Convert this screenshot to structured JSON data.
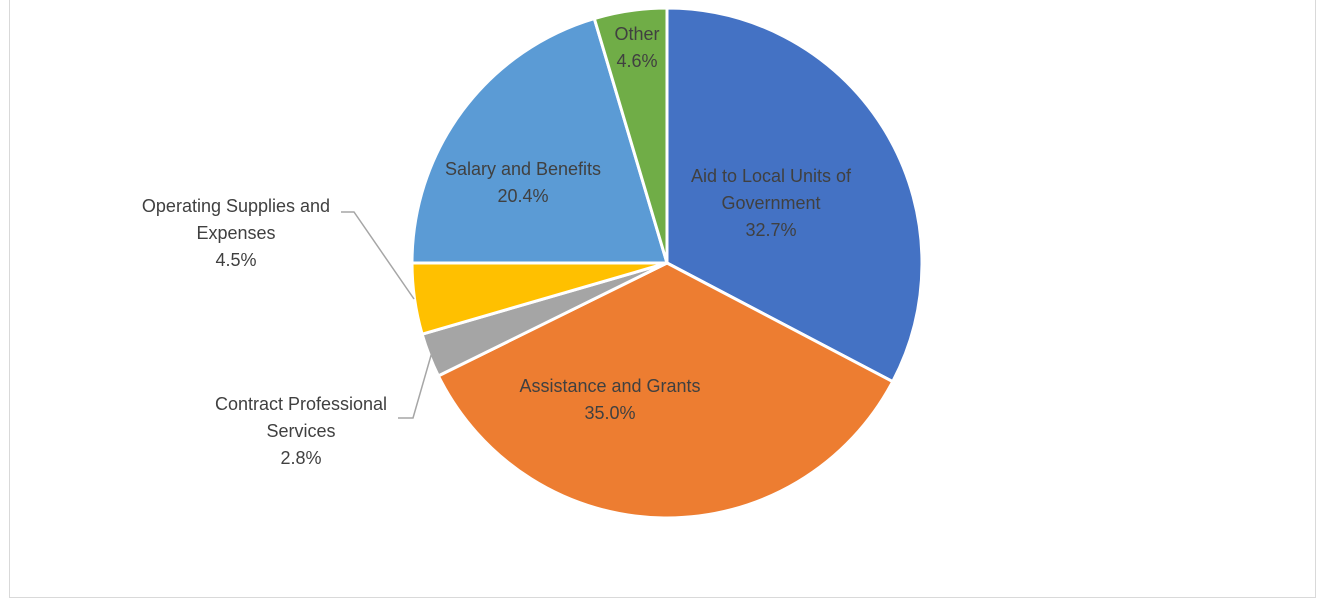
{
  "chart_data": {
    "type": "pie",
    "slices": [
      {
        "label_lines": [
          "Aid to Local Units of",
          "Government"
        ],
        "value": 32.7,
        "value_label": "32.7%",
        "color": "#4472c4"
      },
      {
        "label_lines": [
          "Assistance and Grants"
        ],
        "value": 35.0,
        "value_label": "35.0%",
        "color": "#ed7d31"
      },
      {
        "label_lines": [
          "Contract Professional",
          "Services"
        ],
        "value": 2.8,
        "value_label": "2.8%",
        "color": "#a5a5a5"
      },
      {
        "label_lines": [
          "Operating Supplies and",
          "Expenses"
        ],
        "value": 4.5,
        "value_label": "4.5%",
        "color": "#ffc000"
      },
      {
        "label_lines": [
          "Salary and Benefits"
        ],
        "value": 20.4,
        "value_label": "20.4%",
        "color": "#5b9bd5"
      },
      {
        "label_lines": [
          "Other"
        ],
        "value": 4.6,
        "value_label": "4.6%",
        "color": "#70ad47"
      }
    ],
    "start_angle": "12 o'clock",
    "direction": "clockwise",
    "legend": "none"
  }
}
